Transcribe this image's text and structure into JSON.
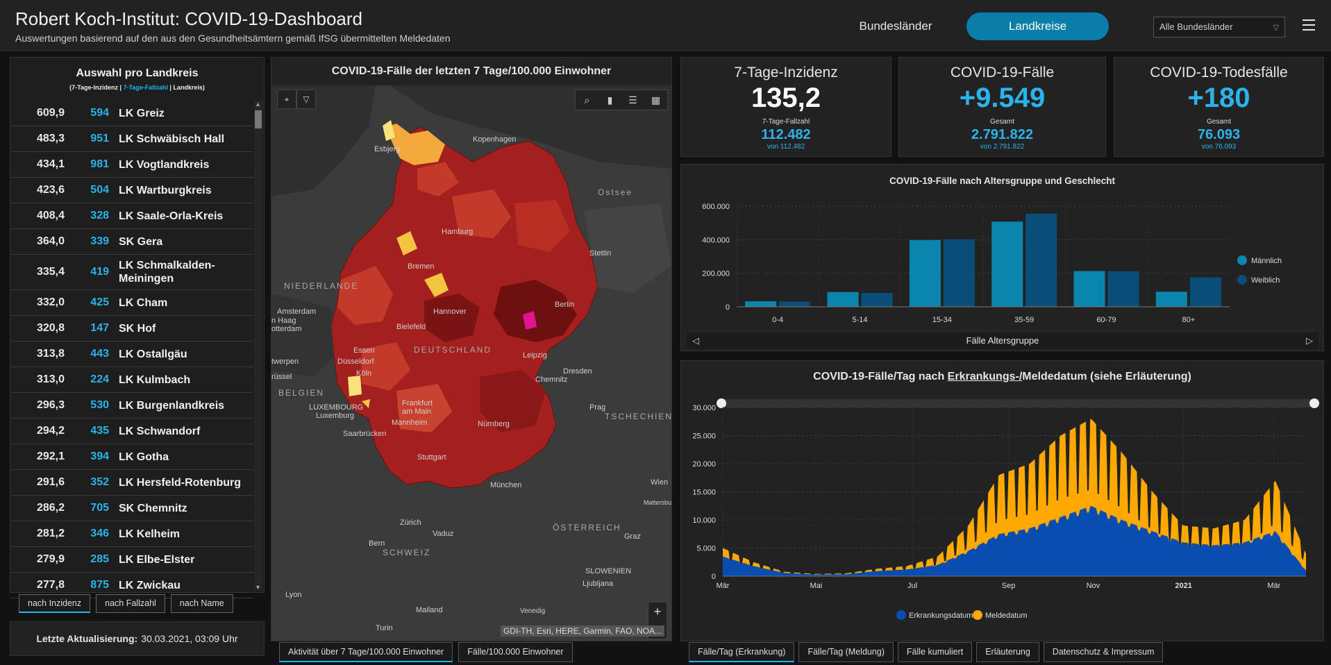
{
  "header": {
    "title": "Robert Koch-Institut: COVID-19-Dashboard",
    "subtitle": "Auswertungen basierend auf den aus den Gesundheitsämtern gemäß IfSG übermittelten Meldedaten",
    "nav_bundeslaender": "Bundesländer",
    "nav_landkreise": "Landkreise",
    "select_value": "Alle Bundesländer"
  },
  "left_panel": {
    "title": "Auswahl pro Landkreis",
    "legend_part1": "(7-Tage-Inzidenz | ",
    "legend_part2": "7-Tage-Fallzahl",
    "legend_part3": " | Landkreis)",
    "rows": [
      {
        "inz": "609,9",
        "cases": "594",
        "name": "LK Greiz"
      },
      {
        "inz": "483,3",
        "cases": "951",
        "name": "LK Schwäbisch Hall"
      },
      {
        "inz": "434,1",
        "cases": "981",
        "name": "LK Vogtlandkreis"
      },
      {
        "inz": "423,6",
        "cases": "504",
        "name": "LK Wartburgkreis"
      },
      {
        "inz": "408,4",
        "cases": "328",
        "name": "LK Saale-Orla-Kreis"
      },
      {
        "inz": "364,0",
        "cases": "339",
        "name": "SK Gera"
      },
      {
        "inz": "335,4",
        "cases": "419",
        "name": "LK Schmalkalden-Meiningen"
      },
      {
        "inz": "332,0",
        "cases": "425",
        "name": "LK Cham"
      },
      {
        "inz": "320,8",
        "cases": "147",
        "name": "SK Hof"
      },
      {
        "inz": "313,8",
        "cases": "443",
        "name": "LK Ostallgäu"
      },
      {
        "inz": "313,0",
        "cases": "224",
        "name": "LK Kulmbach"
      },
      {
        "inz": "296,3",
        "cases": "530",
        "name": "LK Burgenlandkreis"
      },
      {
        "inz": "294,2",
        "cases": "435",
        "name": "LK Schwandorf"
      },
      {
        "inz": "292,1",
        "cases": "394",
        "name": "LK Gotha"
      },
      {
        "inz": "291,6",
        "cases": "352",
        "name": "LK Hersfeld-Rotenburg"
      },
      {
        "inz": "286,2",
        "cases": "705",
        "name": "SK Chemnitz"
      },
      {
        "inz": "281,2",
        "cases": "346",
        "name": "LK Kelheim"
      },
      {
        "inz": "279,9",
        "cases": "285",
        "name": "LK Elbe-Elster"
      },
      {
        "inz": "277,8",
        "cases": "875",
        "name": "LK Zwickau"
      }
    ],
    "sort_tabs": [
      "nach Inzidenz",
      "nach Fallzahl",
      "nach Name"
    ],
    "update_label": "Letzte Aktualisierung:",
    "update_value": "30.03.2021, 03:09 Uhr"
  },
  "map": {
    "title": "COVID-19-Fälle der letzten 7 Tage/100.000 Einwohner",
    "attribution": "GDI-TH, Esri, HERE, Garmin, FAO, NOA...",
    "labels": {
      "esbjerg": "Esbjerg",
      "kopenhagen": "Kopenhagen",
      "ostsee": "Ostsee",
      "hamburg": "Hamburg",
      "stettin": "Stettin",
      "bremen": "Bremen",
      "niederlande": "NIEDERLANDE",
      "amsterdam": "Amsterdam",
      "hannover": "Hannover",
      "berlin": "Berlin",
      "denhaag": "n Haag",
      "rotterdam": "otterdam",
      "bielefeld": "Bielefeld",
      "deutschland": "DEUTSCHLAND",
      "essen": "Essen",
      "leipzig": "Leipzig",
      "antwerpen": "twerpen",
      "duesseldorf": "Düsseldorf",
      "dresden": "Dresden",
      "bruessel": "rüssel",
      "koeln": "Köln",
      "chemnitz": "Chemnitz",
      "belgien": "BELGIEN",
      "frankfurt1": "Frankfurt",
      "frankfurt2": "am Main",
      "prag": "Prag",
      "luxembourg1": "LUXEMBOURG",
      "luxembourg2": "Luxemburg",
      "tschechien": "TSCHECHIEN",
      "mannheim": "Mannheim",
      "nuernberg": "Nürnberg",
      "saarbruecken": "Saarbrücken",
      "stuttgart": "Stuttgart",
      "wien": "Wien",
      "mattersburg": "Mattersbur",
      "muenchen": "München",
      "oesterreich": "ÖSTERREICH",
      "zuerich": "Zürich",
      "vaduz": "Vaduz",
      "graz": "Graz",
      "bern": "Bern",
      "schweiz": "SCHWEIZ",
      "slowenien": "SLOWENIEN",
      "lyon": "Lyon",
      "ljubljana": "Ljubljana",
      "mailand": "Mailand",
      "venedig": "Venedig",
      "turin": "Turin"
    },
    "tabs": [
      "Aktivität über 7 Tage/100.000 Einwohner",
      "Fälle/100.000 Einwohner"
    ]
  },
  "kpis": [
    {
      "title": "7-Tage-Inzidenz",
      "value": "135,2",
      "sub_label": "7-Tage-Fallzahl",
      "sub_value": "112.482",
      "von": "von 112.482",
      "value_color": "#ffffff"
    },
    {
      "title": "COVID-19-Fälle",
      "value": "+9.549",
      "sub_label": "Gesamt",
      "sub_value": "2.791.822",
      "von": "von 2.791.822",
      "value_color": "#2bb4ec"
    },
    {
      "title": "COVID-19-Todesfälle",
      "value": "+180",
      "sub_label": "Gesamt",
      "sub_value": "76.093",
      "von": "von 76.093",
      "value_color": "#2bb4ec"
    }
  ],
  "age_chart": {
    "title": "COVID-19-Fälle nach Altersgruppe und Geschlecht",
    "footer": "Fälle Altersgruppe"
  },
  "daily_chart": {
    "title_part1": "COVID-19-Fälle/Tag nach ",
    "title_part2": "Erkrankungs-/",
    "title_part3": "Meldedatum (siehe Erläuterung)"
  },
  "bottom_tabs": [
    "Fälle/Tag (Erkrankung)",
    "Fälle/Tag (Meldung)",
    "Fälle kumuliert",
    "Erläuterung",
    "Datenschutz & Impressum"
  ],
  "chart_data": [
    {
      "type": "bar",
      "title": "COVID-19-Fälle nach Altersgruppe und Geschlecht",
      "xlabel": "Fälle Altersgruppe",
      "categories": [
        "0-4",
        "5-14",
        "15-34",
        "35-59",
        "60-79",
        "80+"
      ],
      "series": [
        {
          "name": "Männlich",
          "color": "#0a86ad",
          "values": [
            33000,
            88000,
            398000,
            508000,
            213000,
            90000
          ]
        },
        {
          "name": "Weiblich",
          "color": "#0a4d78",
          "values": [
            31000,
            83000,
            402000,
            555000,
            212000,
            176000
          ]
        }
      ],
      "ylim": [
        0,
        600000
      ],
      "yticks": [
        "0",
        "200.000",
        "400.000",
        "600.000"
      ],
      "legend": "right",
      "grid": true
    },
    {
      "type": "area",
      "title": "COVID-19-Fälle/Tag nach Erkrankungs-/Meldedatum (siehe Erläuterung)",
      "ylim": [
        0,
        30000
      ],
      "yticks": [
        "0",
        "5.000",
        "10.000",
        "15.000",
        "20.000",
        "25.000",
        "30.000"
      ],
      "xticks": [
        "Mär",
        "Mai",
        "Jul",
        "Sep",
        "Nov",
        "2021",
        "Mär"
      ],
      "series": [
        {
          "name": "Erkrankungsdatum",
          "color": "#0a4db0"
        },
        {
          "name": "Meldedatum",
          "color": "#ffa800"
        }
      ],
      "x": [
        "2020-03",
        "2020-04",
        "2020-05",
        "2020-06",
        "2020-07",
        "2020-08",
        "2020-09",
        "2020-10",
        "2020-10-15",
        "2020-11",
        "2020-11-15",
        "2020-12",
        "2020-12-15",
        "2021-01",
        "2021-01-15",
        "2021-02",
        "2021-02-15",
        "2021-03",
        "2021-03-15",
        "2021-03-29"
      ],
      "erkrankung": [
        3500,
        1800,
        600,
        300,
        350,
        900,
        1200,
        2000,
        4500,
        7500,
        8500,
        10500,
        12500,
        10000,
        8000,
        6000,
        5500,
        6000,
        8000,
        1000
      ],
      "meldung": [
        5000,
        2500,
        800,
        400,
        500,
        1300,
        1800,
        3500,
        9000,
        18000,
        20000,
        25000,
        28000,
        22000,
        15000,
        9000,
        8500,
        10000,
        17000,
        4000
      ],
      "legend": "bottom",
      "grid": true
    }
  ]
}
